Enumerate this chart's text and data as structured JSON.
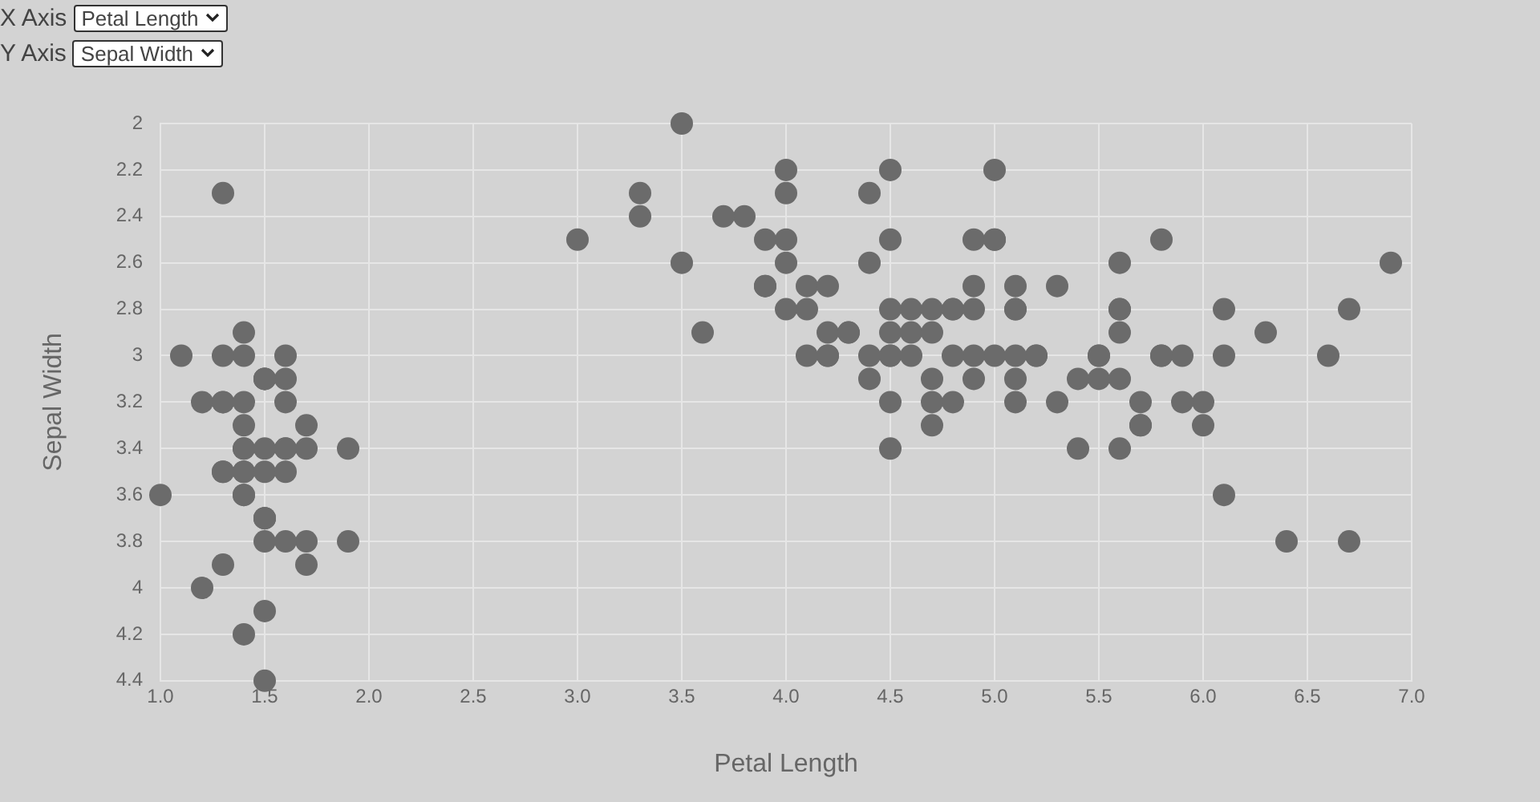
{
  "chart_data": {
    "type": "scatter",
    "xlabel": "Petal Length",
    "ylabel": "Sepal Width",
    "annotations": [
      "X Axis",
      "Y Axis"
    ],
    "xlim": [
      1,
      7
    ],
    "xticks": [
      {
        "value": 1,
        "label": "1.0"
      },
      {
        "value": 1.5,
        "label": "1.5"
      },
      {
        "value": 2,
        "label": "2.0"
      },
      {
        "value": 2.5,
        "label": "2.5"
      },
      {
        "value": 3,
        "label": "3.0"
      },
      {
        "value": 3.5,
        "label": "3.5"
      },
      {
        "value": 4,
        "label": "4.0"
      },
      {
        "value": 4.5,
        "label": "4.5"
      },
      {
        "value": 5,
        "label": "5.0"
      },
      {
        "value": 5.5,
        "label": "5.5"
      },
      {
        "value": 6,
        "label": "6.0"
      },
      {
        "value": 6.5,
        "label": "6.5"
      },
      {
        "value": 7,
        "label": "7.0"
      }
    ],
    "ylim": [
      4.4,
      2
    ],
    "yticks": [
      2,
      2.2,
      2.4,
      2.6,
      2.8,
      3,
      3.2,
      3.4,
      3.6,
      3.8,
      4,
      4.2,
      4.4
    ],
    "grid": true,
    "legend": false,
    "marker": "circle",
    "series": [
      {
        "color": "#6b6b6b",
        "x": [
          1.4,
          1.4,
          1.3,
          1.5,
          1.4,
          1.7,
          1.4,
          1.5,
          1.4,
          1.5,
          1.5,
          1.6,
          1.1,
          1.2,
          1.5,
          1.3,
          1.4,
          1.7,
          1.5,
          1.7,
          1.5,
          1.0,
          1.7,
          1.9,
          1.6,
          1.6,
          1.5,
          1.4,
          1.6,
          1.6,
          1.5,
          1.4,
          1.5,
          1.2,
          1.3,
          1.4,
          1.3,
          1.3,
          1.3,
          1.3,
          1.6,
          1.9,
          1.6,
          1.4,
          1.5,
          1.4,
          4.7,
          4.5,
          4.9,
          4.0,
          4.6,
          4.5,
          4.7,
          3.3,
          4.6,
          3.9,
          3.5,
          4.2,
          4.0,
          4.7,
          3.6,
          4.4,
          4.5,
          4.1,
          4.5,
          3.9,
          4.8,
          4.0,
          4.9,
          4.7,
          4.3,
          4.4,
          4.8,
          5.0,
          4.5,
          3.5,
          3.8,
          3.7,
          3.9,
          5.1,
          4.5,
          4.5,
          4.7,
          4.4,
          4.1,
          4.0,
          4.4,
          4.6,
          4.0,
          3.3,
          4.2,
          4.2,
          4.2,
          4.3,
          3.0,
          4.1,
          6.0,
          5.9,
          5.6,
          5.8,
          6.6,
          4.5,
          6.3,
          5.8,
          6.1,
          5.1,
          5.3,
          5.5,
          5.0,
          5.1,
          5.3,
          5.5,
          6.7,
          6.9,
          5.0,
          5.7,
          4.9,
          6.7,
          4.9,
          5.7,
          6.0,
          4.8,
          4.9,
          5.6,
          5.8,
          6.1,
          6.4,
          5.6,
          5.1,
          5.6,
          6.1,
          5.6,
          5.5,
          4.8,
          5.4,
          5.6,
          5.1,
          5.9,
          5.7,
          5.2,
          5.0,
          5.2,
          5.4,
          5.1
        ],
        "values": [
          3.5,
          3.0,
          3.2,
          3.1,
          3.6,
          3.9,
          3.4,
          3.4,
          2.9,
          3.1,
          3.7,
          3.4,
          3.0,
          4.0,
          4.4,
          3.9,
          3.5,
          3.8,
          3.8,
          3.4,
          3.7,
          3.6,
          3.3,
          3.4,
          3.0,
          3.4,
          3.5,
          3.4,
          3.2,
          3.1,
          4.1,
          4.2,
          3.1,
          3.2,
          3.5,
          3.6,
          3.0,
          3.5,
          2.3,
          3.2,
          3.5,
          3.8,
          3.8,
          3.2,
          3.7,
          3.3,
          3.2,
          3.2,
          3.1,
          2.3,
          2.8,
          2.8,
          3.3,
          2.4,
          2.9,
          2.7,
          2.0,
          3.0,
          2.2,
          2.9,
          2.9,
          3.1,
          3.0,
          2.7,
          2.2,
          2.5,
          3.2,
          2.8,
          2.5,
          2.8,
          2.9,
          3.0,
          2.8,
          3.0,
          2.9,
          2.6,
          2.4,
          2.4,
          2.7,
          2.7,
          3.0,
          3.4,
          3.1,
          2.3,
          3.0,
          2.5,
          2.6,
          3.0,
          2.6,
          2.3,
          2.7,
          3.0,
          2.9,
          2.9,
          2.5,
          2.8,
          3.3,
          3.0,
          2.9,
          3.0,
          3.0,
          2.5,
          2.9,
          2.5,
          3.6,
          3.2,
          2.7,
          3.0,
          2.5,
          2.8,
          3.2,
          3.0,
          3.8,
          2.6,
          2.2,
          3.2,
          2.8,
          2.8,
          2.7,
          3.3,
          3.2,
          2.8,
          3.0,
          2.8,
          3.0,
          2.8,
          3.8,
          2.8,
          2.8,
          2.6,
          3.0,
          3.4,
          3.1,
          3.0,
          3.1,
          3.1,
          3.1,
          3.2,
          3.3,
          3.0,
          2.5,
          3.0,
          3.4,
          3.0
        ]
      }
    ]
  }
}
